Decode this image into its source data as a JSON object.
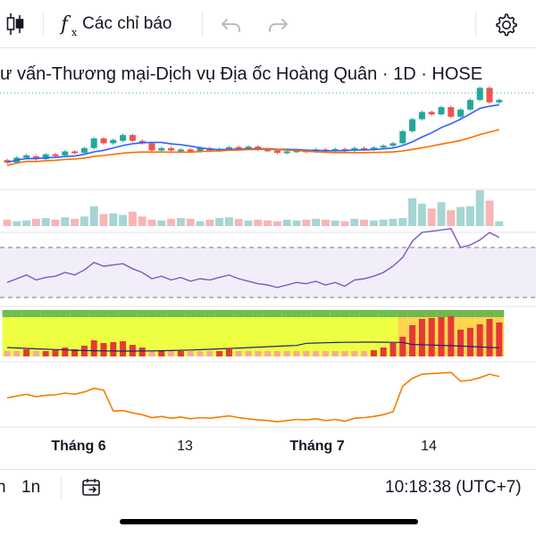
{
  "toolbar": {
    "candle_icon": "candlestick-icon",
    "indicators_label": "Các chỉ báo",
    "undo_icon": "undo-icon",
    "redo_icon": "redo-icon",
    "settings_icon": "gear-icon"
  },
  "chart": {
    "title": "ư vấn-Thương mại-Dịch vụ Địa ốc Hoàng Quân · 1D · HOSE",
    "x_labels": [
      "Tháng 6",
      "13",
      "Tháng 7",
      "14"
    ],
    "up_color": "#26a69a",
    "down_color": "#ef5350",
    "ma_fast_color": "#2962ff",
    "ma_slow_color": "#ff6d00",
    "rsi_color": "#7e57c2",
    "oscillator_color": "#f57c00"
  },
  "chart_data": {
    "type": "candlestick",
    "candles": [
      {
        "o": 3.7,
        "c": 3.65
      },
      {
        "o": 3.65,
        "c": 3.75
      },
      {
        "o": 3.75,
        "c": 3.8
      },
      {
        "o": 3.78,
        "c": 3.72
      },
      {
        "o": 3.72,
        "c": 3.82
      },
      {
        "o": 3.82,
        "c": 3.8
      },
      {
        "o": 3.8,
        "c": 3.88
      },
      {
        "o": 3.88,
        "c": 3.85
      },
      {
        "o": 3.85,
        "c": 3.95
      },
      {
        "o": 3.95,
        "c": 4.15
      },
      {
        "o": 4.15,
        "c": 4.05
      },
      {
        "o": 4.05,
        "c": 4.12
      },
      {
        "o": 4.1,
        "c": 4.22
      },
      {
        "o": 4.22,
        "c": 4.1
      },
      {
        "o": 4.1,
        "c": 4.05
      },
      {
        "o": 4.05,
        "c": 3.9
      },
      {
        "o": 3.9,
        "c": 3.95
      },
      {
        "o": 3.95,
        "c": 3.9
      },
      {
        "o": 3.9,
        "c": 3.92
      },
      {
        "o": 3.92,
        "c": 3.88
      },
      {
        "o": 3.88,
        "c": 3.95
      },
      {
        "o": 3.95,
        "c": 3.9
      },
      {
        "o": 3.9,
        "c": 3.93
      },
      {
        "o": 3.93,
        "c": 3.97
      },
      {
        "o": 3.97,
        "c": 3.95
      },
      {
        "o": 3.95,
        "c": 3.98
      },
      {
        "o": 3.98,
        "c": 3.92
      },
      {
        "o": 3.92,
        "c": 3.9
      },
      {
        "o": 3.9,
        "c": 3.85
      },
      {
        "o": 3.85,
        "c": 3.88
      },
      {
        "o": 3.88,
        "c": 3.9
      },
      {
        "o": 3.9,
        "c": 3.88
      },
      {
        "o": 3.88,
        "c": 3.92
      },
      {
        "o": 3.92,
        "c": 3.9
      },
      {
        "o": 3.9,
        "c": 3.93
      },
      {
        "o": 3.93,
        "c": 3.9
      },
      {
        "o": 3.9,
        "c": 3.95
      },
      {
        "o": 3.95,
        "c": 3.92
      },
      {
        "o": 3.92,
        "c": 3.96
      },
      {
        "o": 3.96,
        "c": 4.0
      },
      {
        "o": 4.0,
        "c": 4.05
      },
      {
        "o": 4.05,
        "c": 4.3
      },
      {
        "o": 4.3,
        "c": 4.55
      },
      {
        "o": 4.55,
        "c": 4.7
      },
      {
        "o": 4.7,
        "c": 4.65
      },
      {
        "o": 4.65,
        "c": 4.8
      },
      {
        "o": 4.8,
        "c": 4.6
      },
      {
        "o": 4.6,
        "c": 4.75
      },
      {
        "o": 4.75,
        "c": 4.95
      },
      {
        "o": 4.95,
        "c": 5.2
      },
      {
        "o": 5.2,
        "c": 4.9
      },
      {
        "o": 4.9,
        "c": 4.95
      }
    ],
    "volume": [
      0.8,
      0.6,
      0.7,
      0.9,
      1.0,
      0.8,
      1.1,
      0.9,
      1.2,
      2.5,
      1.5,
      1.6,
      1.4,
      1.8,
      1.2,
      0.8,
      0.7,
      0.9,
      1.0,
      0.9,
      0.6,
      0.8,
      1.0,
      1.1,
      0.9,
      0.7,
      0.8,
      0.7,
      0.6,
      0.8,
      0.7,
      0.8,
      0.9,
      0.8,
      0.7,
      0.6,
      0.9,
      0.8,
      0.7,
      0.8,
      0.9,
      1.0,
      3.5,
      2.8,
      2.2,
      3.0,
      2.0,
      2.4,
      2.5,
      4.5,
      3.2,
      0.6
    ],
    "rsi": [
      42,
      45,
      48,
      44,
      46,
      47,
      50,
      48,
      52,
      58,
      55,
      56,
      57,
      53,
      50,
      45,
      47,
      44,
      46,
      43,
      45,
      44,
      46,
      48,
      45,
      43,
      41,
      40,
      38,
      40,
      42,
      41,
      43,
      40,
      42,
      39,
      44,
      45,
      47,
      50,
      55,
      62,
      75,
      82,
      83,
      84,
      85,
      70,
      72,
      76,
      82,
      78
    ]
  },
  "bottom": {
    "range_partial": "n",
    "range_1n": "1n",
    "goto_icon": "calendar-goto-icon",
    "time": "10:18:38 (UTC+7)"
  }
}
